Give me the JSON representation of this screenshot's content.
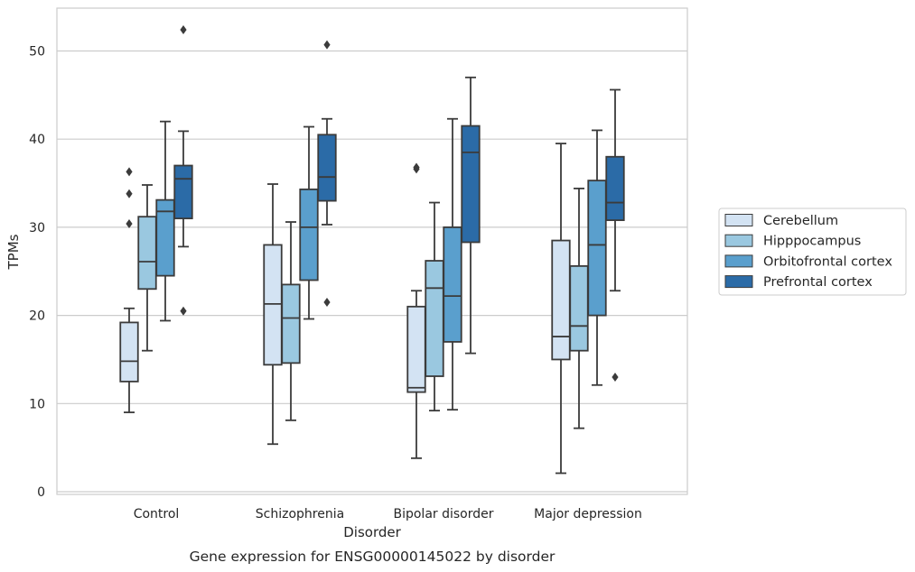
{
  "chart_data": {
    "type": "box",
    "caption": "Gene expression for ENSG00000145022 by disorder",
    "xlabel": "Disorder",
    "ylabel": "TPMs",
    "ylim": [
      -0.5,
      55
    ],
    "yticks": [
      0,
      10,
      20,
      30,
      40,
      50
    ],
    "grid": "horizontal",
    "legend_position": "right",
    "categories": [
      "Control",
      "Schizophrenia",
      "Bipolar disorder",
      "Major depression"
    ],
    "series": [
      {
        "name": "Cerebellum",
        "color": "#d3e3f3",
        "boxes": [
          {
            "whislo": 9.0,
            "q1": 12.5,
            "med": 14.8,
            "q3": 19.2,
            "whishi": 20.8,
            "fliers": [
              30.4,
              33.8,
              36.3
            ]
          },
          {
            "whislo": 5.4,
            "q1": 14.4,
            "med": 21.3,
            "q3": 28.0,
            "whishi": 34.9,
            "fliers": []
          },
          {
            "whislo": 3.8,
            "q1": 11.3,
            "med": 11.8,
            "q3": 21.0,
            "whishi": 22.8,
            "fliers": [
              36.6,
              36.8
            ]
          },
          {
            "whislo": 2.1,
            "q1": 15.0,
            "med": 17.6,
            "q3": 28.5,
            "whishi": 39.5,
            "fliers": []
          }
        ]
      },
      {
        "name": "Hipppocampus",
        "color": "#9ac8e0",
        "boxes": [
          {
            "whislo": 16.0,
            "q1": 23.0,
            "med": 26.1,
            "q3": 31.2,
            "whishi": 34.8,
            "fliers": []
          },
          {
            "whislo": 8.1,
            "q1": 14.6,
            "med": 19.7,
            "q3": 23.5,
            "whishi": 30.6,
            "fliers": []
          },
          {
            "whislo": 9.2,
            "q1": 13.1,
            "med": 23.1,
            "q3": 26.2,
            "whishi": 32.8,
            "fliers": []
          },
          {
            "whislo": 7.2,
            "q1": 16.0,
            "med": 18.8,
            "q3": 25.6,
            "whishi": 34.4,
            "fliers": []
          }
        ]
      },
      {
        "name": "Orbitofrontal cortex",
        "color": "#5a9fcd",
        "boxes": [
          {
            "whislo": 19.4,
            "q1": 24.5,
            "med": 31.8,
            "q3": 33.1,
            "whishi": 42.0,
            "fliers": []
          },
          {
            "whislo": 19.6,
            "q1": 24.0,
            "med": 30.0,
            "q3": 34.3,
            "whishi": 41.4,
            "fliers": []
          },
          {
            "whislo": 9.3,
            "q1": 17.0,
            "med": 22.2,
            "q3": 30.0,
            "whishi": 42.3,
            "fliers": []
          },
          {
            "whislo": 12.1,
            "q1": 20.0,
            "med": 28.0,
            "q3": 35.3,
            "whishi": 41.0,
            "fliers": []
          }
        ]
      },
      {
        "name": "Prefrontal cortex",
        "color": "#2b6ba7",
        "boxes": [
          {
            "whislo": 27.8,
            "q1": 31.0,
            "med": 35.5,
            "q3": 37.0,
            "whishi": 40.9,
            "fliers": [
              20.5,
              52.4
            ]
          },
          {
            "whislo": 30.3,
            "q1": 33.0,
            "med": 35.7,
            "q3": 40.5,
            "whishi": 42.3,
            "fliers": [
              21.5,
              50.7
            ]
          },
          {
            "whislo": 15.7,
            "q1": 28.3,
            "med": 38.5,
            "q3": 41.5,
            "whishi": 47.0,
            "fliers": []
          },
          {
            "whislo": 22.8,
            "q1": 30.8,
            "med": 32.8,
            "q3": 38.0,
            "whishi": 45.6,
            "fliers": [
              13.0
            ]
          }
        ]
      }
    ]
  }
}
